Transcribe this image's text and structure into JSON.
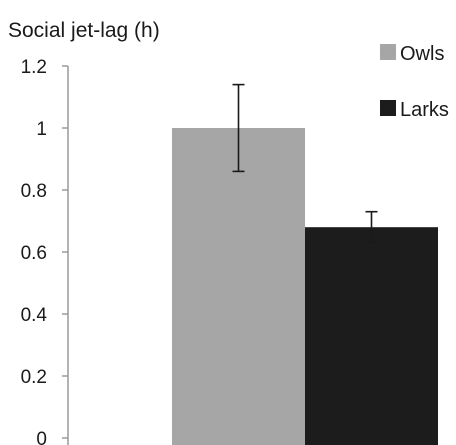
{
  "chart_data": {
    "type": "bar",
    "title": "Social jet-lag (h)",
    "xlabel": "",
    "ylabel": "",
    "ylim": [
      0,
      1.2
    ],
    "yticks": [
      "0",
      "0.2",
      "0.4",
      "0.6",
      "0.8",
      "1",
      "1.2"
    ],
    "grid": false,
    "legend_position": "top-right",
    "series": [
      {
        "name": "Owls",
        "value": 1.0,
        "error": 0.14,
        "color": "#a6a6a6"
      },
      {
        "name": "Larks",
        "value": 0.68,
        "error": 0.05,
        "color": "#1c1c1c"
      }
    ]
  }
}
